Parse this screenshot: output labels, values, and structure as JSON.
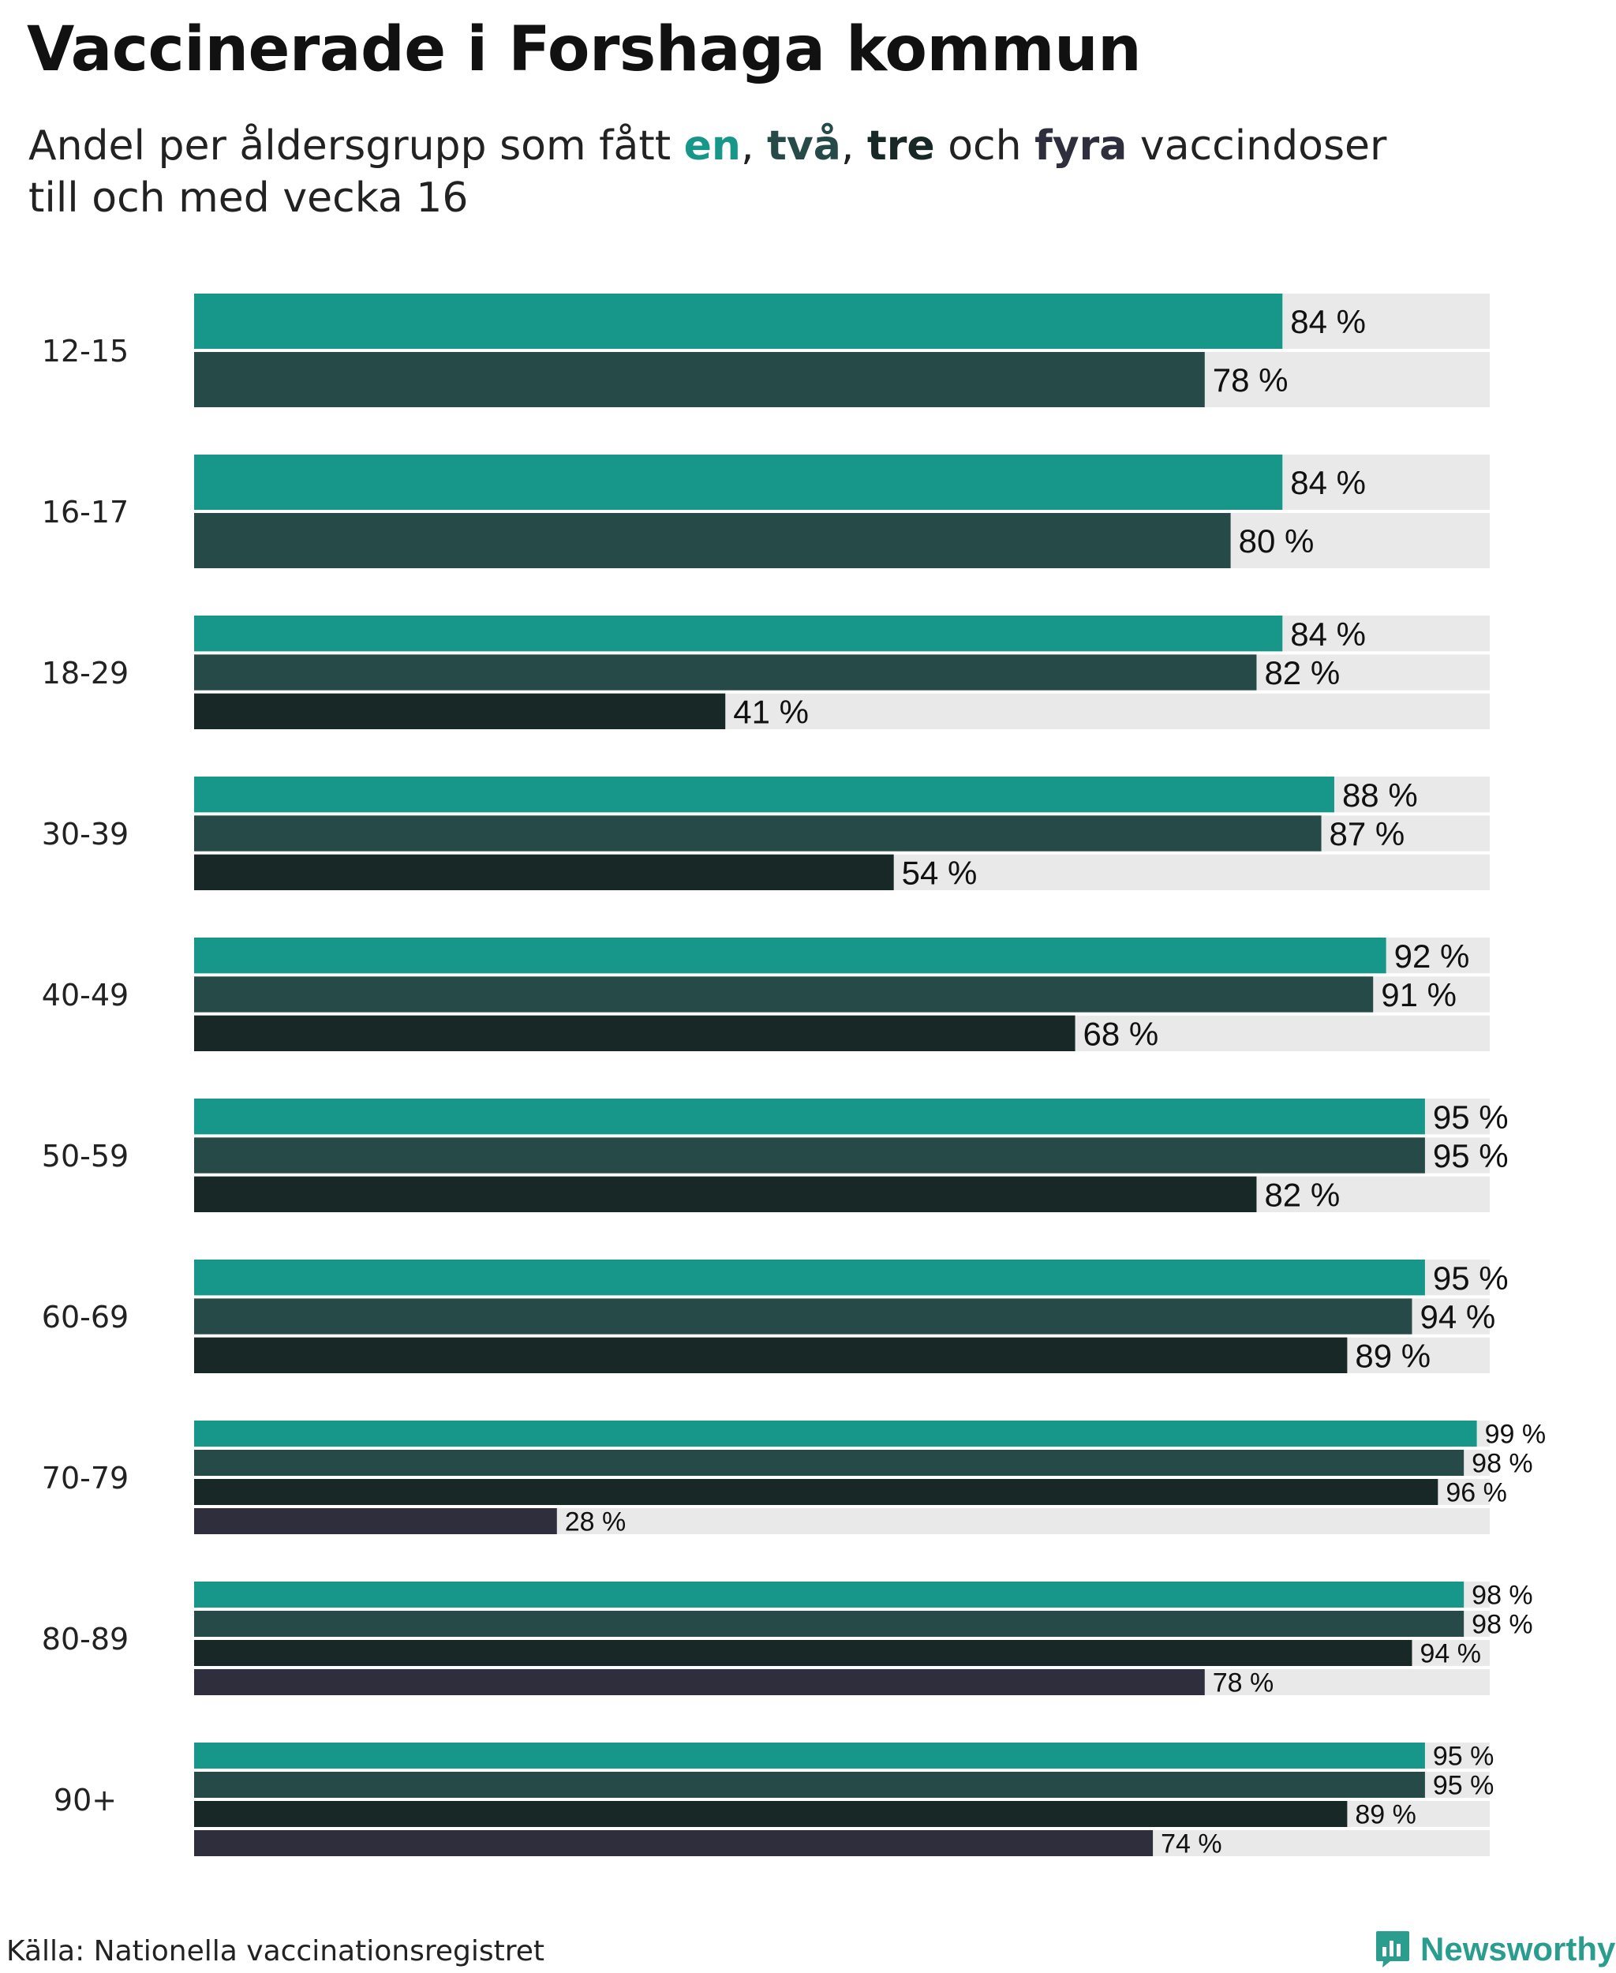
{
  "title": "Vaccinerade i Forshaga kommun",
  "subtitle": {
    "prefix": "Andel per åldersgrupp som fått ",
    "dose1": "en",
    "sep1": ", ",
    "dose2": "två",
    "sep2": ", ",
    "dose3": "tre",
    "sep3": " och ",
    "dose4": "fyra",
    "suffix": " vaccindoser",
    "line2": "till och med vecka 16"
  },
  "colors": {
    "dose1": "#16978a",
    "dose2": "#264a48",
    "dose3": "#182826",
    "dose4": "#2e2e3c",
    "background_bar": "#e9e9e9",
    "brand": "#2a9d8f"
  },
  "chart_data": {
    "type": "bar",
    "orientation": "horizontal",
    "title": "Vaccinerade i Forshaga kommun",
    "xlabel": "",
    "ylabel": "",
    "xlim": [
      0,
      100
    ],
    "value_suffix": " %",
    "categories": [
      "12-15",
      "16-17",
      "18-29",
      "30-39",
      "40-49",
      "50-59",
      "60-69",
      "70-79",
      "80-89",
      "90+"
    ],
    "series": [
      {
        "name": "en",
        "values": [
          84,
          84,
          84,
          88,
          92,
          95,
          95,
          99,
          98,
          95
        ]
      },
      {
        "name": "två",
        "values": [
          78,
          80,
          82,
          87,
          91,
          95,
          94,
          98,
          98,
          95
        ]
      },
      {
        "name": "tre",
        "values": [
          null,
          null,
          41,
          54,
          68,
          82,
          89,
          96,
          94,
          89
        ]
      },
      {
        "name": "fyra",
        "values": [
          null,
          null,
          null,
          null,
          null,
          null,
          null,
          28,
          78,
          74
        ]
      }
    ]
  },
  "footer": {
    "source": "Källa: Nationella vaccinationsregistret",
    "brand": "Newsworthy"
  }
}
